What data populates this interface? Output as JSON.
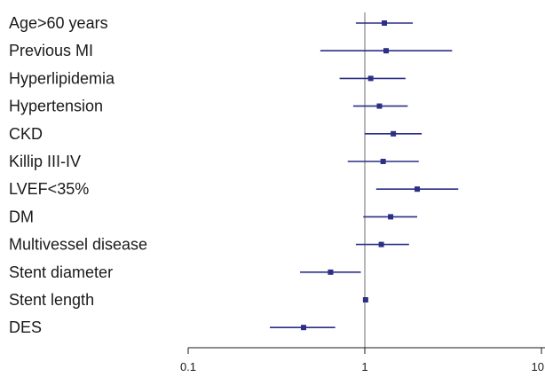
{
  "chart_data": {
    "type": "forest",
    "title": "",
    "xlabel": "",
    "ylabel": "",
    "x_scale": "log",
    "xlim": [
      0.1,
      10
    ],
    "reference_line": 1,
    "x_ticks": [
      {
        "value": 0.1,
        "label": "0.1"
      },
      {
        "value": 1,
        "label": "1"
      },
      {
        "value": 10,
        "label": "10"
      }
    ],
    "colors": {
      "series": "#2b2f86",
      "reference": "#6e6e6e",
      "axis": "#1a1a1a",
      "text": "#1a1a1a"
    },
    "rows": [
      {
        "label": "Age>60 years",
        "estimate": 1.29,
        "ci_low": 0.89,
        "ci_high": 1.87
      },
      {
        "label": "Previous MI",
        "estimate": 1.32,
        "ci_low": 0.56,
        "ci_high": 3.12
      },
      {
        "label": "Hyperlipidemia",
        "estimate": 1.08,
        "ci_low": 0.72,
        "ci_high": 1.7
      },
      {
        "label": "Hypertension",
        "estimate": 1.21,
        "ci_low": 0.86,
        "ci_high": 1.75
      },
      {
        "label": "CKD",
        "estimate": 1.45,
        "ci_low": 1.0,
        "ci_high": 2.1
      },
      {
        "label": "Killip III-IV",
        "estimate": 1.27,
        "ci_low": 0.8,
        "ci_high": 2.02
      },
      {
        "label": "LVEF<35%",
        "estimate": 1.98,
        "ci_low": 1.16,
        "ci_high": 3.38
      },
      {
        "label": "DM",
        "estimate": 1.4,
        "ci_low": 0.98,
        "ci_high": 1.98
      },
      {
        "label": "Multivessel disease",
        "estimate": 1.24,
        "ci_low": 0.89,
        "ci_high": 1.78
      },
      {
        "label": "Stent diameter",
        "estimate": 0.64,
        "ci_low": 0.43,
        "ci_high": 0.95
      },
      {
        "label": "Stent length",
        "estimate": 1.01,
        "ci_low": 1.0,
        "ci_high": 1.02
      },
      {
        "label": "DES",
        "estimate": 0.45,
        "ci_low": 0.29,
        "ci_high": 0.68
      }
    ]
  }
}
